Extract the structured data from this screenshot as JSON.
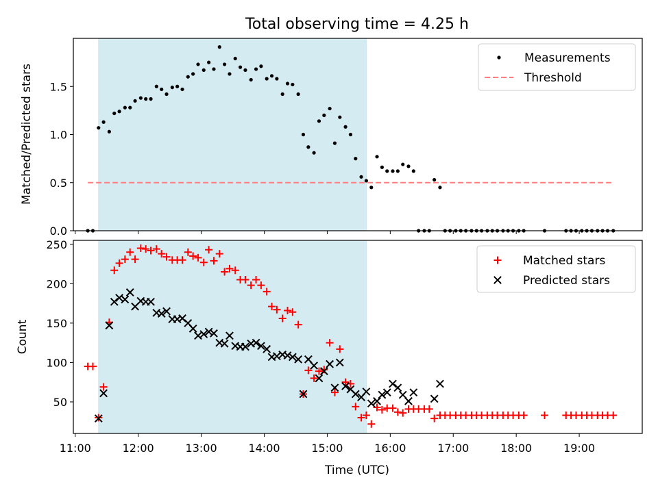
{
  "title": "Total observing time = 4.25 h",
  "colors": {
    "highlight": "#add8e6",
    "threshold": "#ff7f7f",
    "matched": "#ff0000",
    "predicted": "#000000",
    "measurements": "#000000"
  },
  "chart_data": [
    {
      "type": "scatter",
      "panel": "top",
      "ylabel": "Matched/Predicted stars",
      "xlim": [
        10.97,
        20.0
      ],
      "ylim": [
        0.0,
        2.0
      ],
      "yticks": [
        0.0,
        0.5,
        1.0,
        1.5
      ],
      "ytick_labels": [
        "0.0",
        "0.5",
        "1.0",
        "1.5"
      ],
      "highlight_span": [
        11.37,
        15.62
      ],
      "legend": {
        "placement": "top-right",
        "entries": [
          "Measurements",
          "Threshold"
        ]
      },
      "threshold": {
        "name": "Threshold",
        "value": 0.5,
        "x_range": [
          11.2,
          19.55
        ]
      },
      "measurements": {
        "name": "Measurements",
        "x": [
          11.2,
          11.28,
          11.37,
          11.45,
          11.54,
          11.62,
          11.7,
          11.79,
          11.87,
          11.95,
          12.04,
          12.12,
          12.2,
          12.29,
          12.37,
          12.45,
          12.54,
          12.62,
          12.7,
          12.79,
          12.87,
          12.95,
          13.04,
          13.12,
          13.2,
          13.29,
          13.37,
          13.45,
          13.54,
          13.62,
          13.7,
          13.79,
          13.87,
          13.95,
          14.04,
          14.12,
          14.2,
          14.29,
          14.37,
          14.45,
          14.54,
          14.62,
          14.7,
          14.79,
          14.87,
          14.95,
          15.04,
          15.12,
          15.2,
          15.29,
          15.37,
          15.45,
          15.54,
          15.62,
          15.7,
          15.79,
          15.87,
          15.95,
          16.04,
          16.12,
          16.2,
          16.29,
          16.37,
          16.45,
          16.54,
          16.62,
          16.7,
          16.79,
          16.87,
          16.95,
          17.04,
          17.12,
          17.2,
          17.29,
          17.37,
          17.45,
          17.54,
          17.62,
          17.7,
          17.79,
          17.87,
          17.95,
          18.04,
          18.12,
          18.45,
          18.79,
          18.87,
          18.95,
          19.04,
          19.12,
          19.2,
          19.29,
          19.37,
          19.45,
          19.54
        ],
        "y": [
          0.0,
          0.0,
          1.07,
          1.13,
          1.03,
          1.22,
          1.24,
          1.28,
          1.28,
          1.35,
          1.38,
          1.37,
          1.37,
          1.5,
          1.47,
          1.42,
          1.49,
          1.5,
          1.47,
          1.6,
          1.63,
          1.73,
          1.67,
          1.75,
          1.68,
          1.91,
          1.73,
          1.63,
          1.79,
          1.7,
          1.67,
          1.57,
          1.68,
          1.71,
          1.58,
          1.61,
          1.58,
          1.42,
          1.53,
          1.52,
          1.42,
          1.0,
          0.87,
          0.81,
          1.14,
          1.2,
          1.27,
          0.91,
          1.18,
          1.08,
          1.0,
          0.75,
          0.56,
          0.52,
          0.45,
          0.77,
          0.66,
          0.62,
          0.62,
          0.62,
          0.69,
          0.67,
          0.62,
          0.0,
          0.0,
          0.0,
          0.53,
          0.45,
          0.0,
          0.0,
          0.0,
          0.0,
          0.0,
          0.0,
          0.0,
          0.0,
          0.0,
          0.0,
          0.0,
          0.0,
          0.0,
          0.0,
          0.0,
          0.0,
          0.0,
          0.0,
          0.0,
          0.0,
          0.0,
          0.0,
          0.0,
          0.0,
          0.0,
          0.0,
          0.0
        ]
      }
    },
    {
      "type": "scatter",
      "panel": "bottom",
      "xlabel": "Time (UTC)",
      "ylabel": "Count",
      "xlim": [
        10.97,
        20.0
      ],
      "ylim": [
        10,
        255
      ],
      "xticks": [
        11,
        12,
        13,
        14,
        15,
        16,
        17,
        18,
        19
      ],
      "xtick_labels": [
        "11:00",
        "12:00",
        "13:00",
        "14:00",
        "15:00",
        "16:00",
        "17:00",
        "18:00",
        "19:00"
      ],
      "yticks": [
        50,
        100,
        150,
        200,
        250
      ],
      "ytick_labels": [
        "50",
        "100",
        "150",
        "200",
        "250"
      ],
      "highlight_span": [
        11.37,
        15.62
      ],
      "legend": {
        "placement": "top-right",
        "entries": [
          "Matched stars",
          "Predicted stars"
        ]
      },
      "matched": {
        "name": "Matched stars",
        "x": [
          11.2,
          11.28,
          11.37,
          11.45,
          11.54,
          11.62,
          11.7,
          11.79,
          11.87,
          11.95,
          12.04,
          12.12,
          12.2,
          12.29,
          12.37,
          12.45,
          12.54,
          12.62,
          12.7,
          12.79,
          12.87,
          12.95,
          13.04,
          13.12,
          13.2,
          13.29,
          13.37,
          13.45,
          13.54,
          13.62,
          13.7,
          13.79,
          13.87,
          13.95,
          14.04,
          14.12,
          14.2,
          14.29,
          14.37,
          14.45,
          14.54,
          14.62,
          14.7,
          14.79,
          14.87,
          14.95,
          15.04,
          15.12,
          15.2,
          15.29,
          15.37,
          15.45,
          15.54,
          15.62,
          15.7,
          15.79,
          15.87,
          15.95,
          16.04,
          16.12,
          16.2,
          16.29,
          16.37,
          16.45,
          16.54,
          16.62,
          16.7,
          16.79,
          16.87,
          16.95,
          17.04,
          17.12,
          17.2,
          17.29,
          17.37,
          17.45,
          17.54,
          17.62,
          17.7,
          17.79,
          17.87,
          17.95,
          18.04,
          18.12,
          18.45,
          18.79,
          18.87,
          18.95,
          19.04,
          19.12,
          19.2,
          19.29,
          19.37,
          19.45,
          19.54
        ],
        "y": [
          95,
          95,
          30,
          69,
          151,
          217,
          226,
          231,
          240,
          231,
          245,
          244,
          242,
          244,
          238,
          234,
          230,
          230,
          230,
          240,
          235,
          233,
          227,
          243,
          229,
          238,
          215,
          219,
          217,
          205,
          205,
          198,
          205,
          198,
          190,
          171,
          167,
          156,
          166,
          164,
          148,
          60,
          90,
          80,
          89,
          91,
          125,
          62,
          117,
          75,
          73,
          44,
          30,
          33,
          22,
          43,
          40,
          42,
          42,
          37,
          36,
          41,
          41,
          41,
          41,
          41,
          29,
          33,
          33,
          33,
          33,
          33,
          33,
          33,
          33,
          33,
          33,
          33,
          33,
          33,
          33,
          33,
          33,
          33,
          33,
          33,
          33,
          33,
          33,
          33,
          33,
          33,
          33,
          33,
          33
        ]
      },
      "predicted": {
        "name": "Predicted stars",
        "x": [
          11.37,
          11.45,
          11.54,
          11.62,
          11.7,
          11.79,
          11.87,
          11.95,
          12.04,
          12.12,
          12.2,
          12.29,
          12.37,
          12.45,
          12.54,
          12.62,
          12.7,
          12.79,
          12.87,
          12.95,
          13.04,
          13.12,
          13.2,
          13.29,
          13.37,
          13.45,
          13.54,
          13.62,
          13.7,
          13.79,
          13.87,
          13.95,
          14.04,
          14.12,
          14.2,
          14.29,
          14.37,
          14.45,
          14.54,
          14.62,
          14.7,
          14.79,
          14.87,
          14.95,
          15.04,
          15.12,
          15.2,
          15.29,
          15.37,
          15.45,
          15.54,
          15.62,
          15.7,
          15.79,
          15.87,
          15.95,
          16.04,
          16.12,
          16.2,
          16.29,
          16.37,
          16.7,
          16.79
        ],
        "y": [
          29,
          61,
          147,
          177,
          182,
          180,
          189,
          171,
          178,
          177,
          177,
          163,
          162,
          165,
          155,
          155,
          156,
          150,
          143,
          134,
          136,
          139,
          137,
          125,
          124,
          134,
          121,
          120,
          120,
          124,
          125,
          121,
          117,
          107,
          108,
          110,
          109,
          107,
          104,
          60,
          104,
          96,
          80,
          89,
          98,
          68,
          100,
          70,
          66,
          60,
          56,
          63,
          48,
          51,
          59,
          62,
          73,
          68,
          59,
          51,
          62,
          54,
          73
        ]
      }
    }
  ]
}
